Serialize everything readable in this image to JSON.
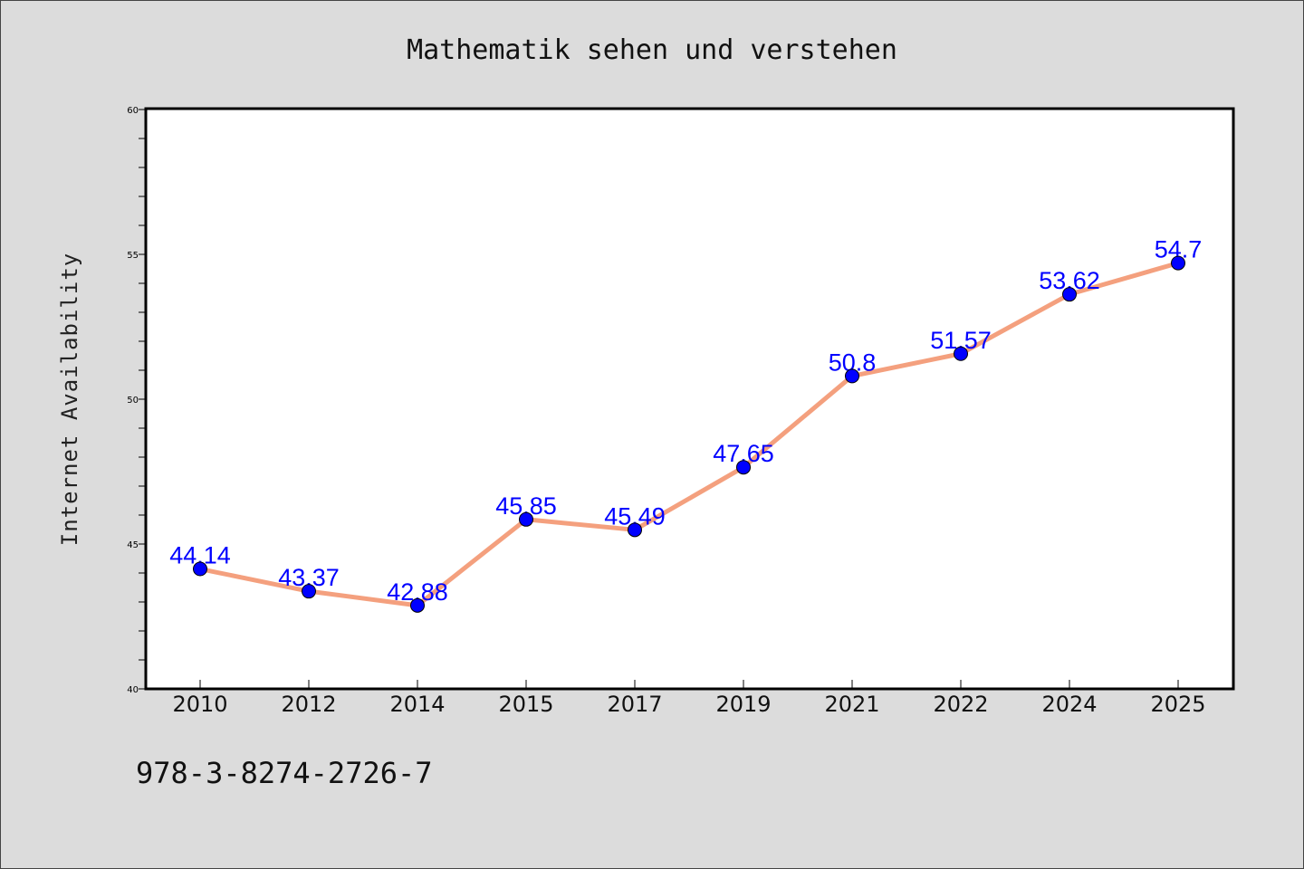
{
  "chart_data": {
    "type": "line",
    "title": "Mathematik sehen und verstehen",
    "xlabel": "",
    "ylabel": "Internet Availability",
    "categories": [
      "2010",
      "2012",
      "2014",
      "2015",
      "2017",
      "2019",
      "2021",
      "2022",
      "2024",
      "2025"
    ],
    "series": [
      {
        "values": [
          44.14,
          43.37,
          42.88,
          45.85,
          45.49,
          47.65,
          50.8,
          51.57,
          53.62,
          54.7
        ],
        "labels": [
          "44.14",
          "43.37",
          "42.88",
          "45.85",
          "45.49",
          "47.65",
          "50.8",
          "51.57",
          "53.62",
          "54.7"
        ],
        "line_color": "#f4a07e",
        "marker_color": "#0000ff"
      }
    ],
    "ylim": [
      40,
      60
    ],
    "yticks": [
      "40",
      "45",
      "50",
      "55",
      "60"
    ],
    "grid": false,
    "legend": "none"
  },
  "footer": {
    "isbn": "978-3-8274-2726-7"
  }
}
